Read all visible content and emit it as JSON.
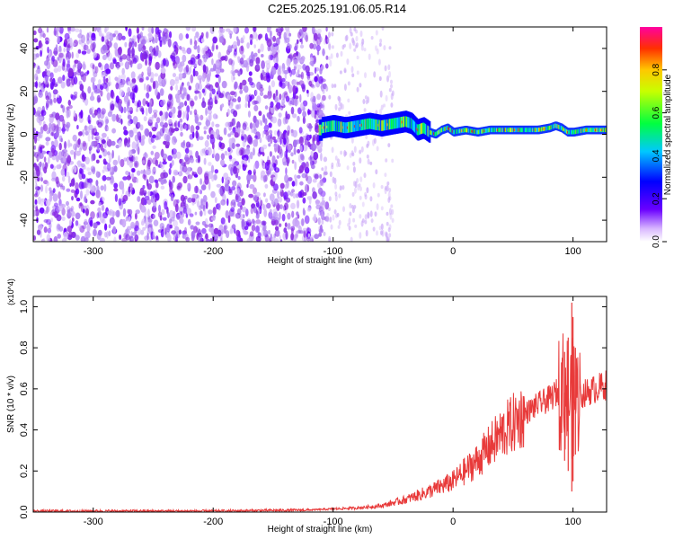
{
  "title": "C2E5.2025.191.06.05.R14",
  "chart_data": [
    {
      "type": "heatmap",
      "xlabel": "Height of straight line (km)",
      "ylabel": "Frequency (Hz)",
      "xlim": [
        -350,
        128
      ],
      "ylim": [
        -50,
        50
      ],
      "xticks": [
        -300,
        -200,
        -100,
        0,
        100
      ],
      "yticks": [
        -40,
        -20,
        0,
        20,
        40
      ],
      "colorbar": {
        "label": "Normalized spectral amplitude",
        "range": [
          0,
          1
        ],
        "ticks": [
          "0.0",
          "0.2",
          "0.4",
          "0.6",
          "0.8"
        ]
      },
      "ridge": {
        "description_points_x": [
          -110,
          -100,
          -90,
          -80,
          -70,
          -60,
          -50,
          -40,
          -35,
          -30,
          -25,
          -20,
          -15,
          -10,
          -5,
          0,
          10,
          20,
          30,
          40,
          50,
          60,
          70,
          80,
          85,
          90,
          95,
          100,
          110,
          120
        ],
        "description_points_freq": [
          3,
          4,
          3,
          4,
          5,
          4,
          5,
          6,
          5,
          2,
          3,
          1,
          0,
          2,
          3,
          1,
          2,
          1,
          2,
          2,
          2,
          2,
          2,
          3,
          4,
          3,
          1,
          1,
          2,
          2
        ]
      }
    },
    {
      "type": "line",
      "xlabel": "Height of straight line (km)",
      "ylabel": "SNR (10 * v/v)",
      "y_multiplier": "(x10^4)",
      "xlim": [
        -350,
        128
      ],
      "ylim": [
        0,
        1.05
      ],
      "xticks": [
        -300,
        -200,
        -100,
        0,
        100
      ],
      "yticks": [
        "0.0",
        "0.2",
        "0.4",
        "0.6",
        "0.8",
        "1.0"
      ],
      "color": "#e83a3a",
      "envelope_x": [
        -350,
        -200,
        -120,
        -100,
        -80,
        -60,
        -40,
        -20,
        0,
        20,
        40,
        60,
        70,
        80,
        90,
        95,
        100,
        105,
        110,
        128
      ],
      "envelope_y": [
        0.005,
        0.005,
        0.01,
        0.015,
        0.02,
        0.03,
        0.06,
        0.1,
        0.15,
        0.25,
        0.38,
        0.48,
        0.52,
        0.55,
        0.6,
        0.58,
        0.55,
        0.56,
        0.58,
        0.62
      ],
      "spikes": [
        {
          "x": 93,
          "lo": 0.25,
          "hi": 0.78
        },
        {
          "x": 96,
          "lo": 0.2,
          "hi": 0.85
        },
        {
          "x": 99,
          "lo": 0.1,
          "hi": 1.02
        },
        {
          "x": 100,
          "lo": 0.15,
          "hi": 0.95
        },
        {
          "x": 102,
          "lo": 0.28,
          "hi": 0.8
        }
      ]
    }
  ]
}
